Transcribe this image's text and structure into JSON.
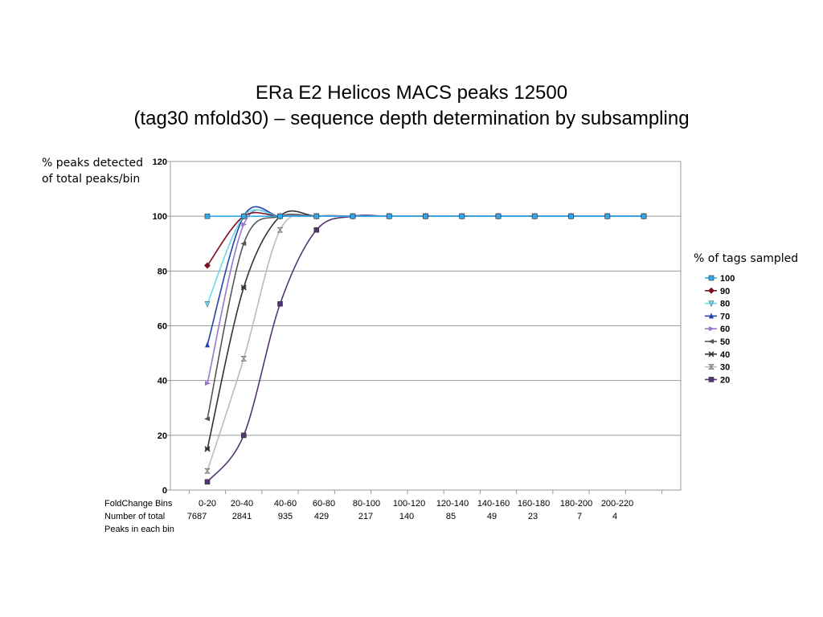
{
  "title": {
    "line1": "ERa E2 Helicos MACS peaks 12500",
    "line2": "(tag30 mfold30) – sequence depth determination by subsampling"
  },
  "ylabel": {
    "line1": "% peaks detected",
    "line2": "of total peaks/bin"
  },
  "legend_title": "% of tags sampled",
  "bin_table": {
    "row1_label": "FoldChange Bins",
    "row2_label": "Number of total",
    "row3_label": "Peaks in each bin",
    "bins": [
      "0-20",
      "20-40",
      "40-60",
      "60-80",
      "80-100",
      "100-120",
      "120-140",
      "140-160",
      "160-180",
      "180-200",
      "200-220"
    ],
    "counts": [
      "7687",
      "2841",
      "935",
      "429",
      "217",
      "140",
      "85",
      "49",
      "23",
      "7",
      "4"
    ]
  },
  "chart_data": {
    "type": "line",
    "title": "ERa E2 Helicos MACS peaks 12500 (tag30 mfold30) – sequence depth determination by subsampling",
    "xlabel": "FoldChange Bins",
    "ylabel": "% peaks detected of total peaks/bin",
    "categories": [
      "0-20",
      "20-40",
      "40-60",
      "60-80",
      "80-100",
      "100-120",
      "120-140",
      "140-160",
      "160-180",
      "180-200",
      "200-220",
      "",
      ""
    ],
    "ylim": [
      0,
      120
    ],
    "yticks": [
      "0",
      "20",
      "40",
      "60",
      "80",
      "100",
      "120"
    ],
    "grid": true,
    "legend_position": "right",
    "series": [
      {
        "name": "100",
        "color": "#33aaee",
        "marker": "square",
        "values": [
          100,
          100,
          100,
          100,
          100,
          100,
          100,
          100,
          100,
          100,
          100,
          100,
          100
        ]
      },
      {
        "name": "90",
        "color": "#7a1020",
        "marker": "diamond",
        "values": [
          82,
          100,
          100,
          100,
          100,
          100,
          100,
          100,
          100,
          100,
          100,
          100,
          100
        ]
      },
      {
        "name": "80",
        "color": "#66ddee",
        "marker": "triangle-down",
        "values": [
          68,
          100,
          100,
          100,
          100,
          100,
          100,
          100,
          100,
          100,
          100,
          100,
          100
        ]
      },
      {
        "name": "70",
        "color": "#2244aa",
        "marker": "triangle-up",
        "values": [
          53,
          100,
          100,
          100,
          100,
          100,
          100,
          100,
          100,
          100,
          100,
          100,
          100
        ]
      },
      {
        "name": "60",
        "color": "#9977cc",
        "marker": "triangle-right",
        "values": [
          39,
          97,
          100,
          100,
          100,
          100,
          100,
          100,
          100,
          100,
          100,
          100,
          100
        ]
      },
      {
        "name": "50",
        "color": "#555555",
        "marker": "triangle-left",
        "values": [
          26,
          90,
          100,
          100,
          100,
          100,
          100,
          100,
          100,
          100,
          100,
          100,
          100
        ]
      },
      {
        "name": "40",
        "color": "#333333",
        "marker": "star",
        "values": [
          15,
          74,
          100,
          100,
          100,
          100,
          100,
          100,
          100,
          100,
          100,
          100,
          100
        ]
      },
      {
        "name": "30",
        "color": "#bbbbbb",
        "marker": "hourglass",
        "values": [
          7,
          48,
          95,
          100,
          100,
          100,
          100,
          100,
          100,
          100,
          100,
          100,
          100
        ]
      },
      {
        "name": "20",
        "color": "#553377",
        "marker": "square",
        "values": [
          3,
          20,
          68,
          95,
          100,
          100,
          100,
          100,
          100,
          100,
          100,
          100,
          100
        ]
      }
    ]
  }
}
